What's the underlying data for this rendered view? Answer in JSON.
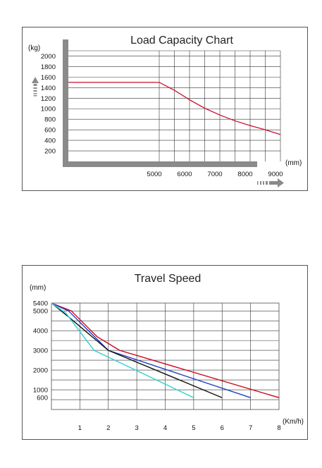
{
  "chart_data": [
    {
      "type": "line",
      "title": "Load Capacity Chart",
      "ylabel": "(kg)",
      "xlabel": "(mm)",
      "y_ticks": [
        "2000",
        "1800",
        "1600",
        "1400",
        "1200",
        "1000",
        "800",
        "600",
        "400",
        "200"
      ],
      "x_ticks": [
        "5000",
        "6000",
        "7000",
        "8000",
        "9000"
      ],
      "ylim": [
        0,
        2100
      ],
      "xlim": [
        2000,
        9000
      ],
      "grid": true,
      "series": [
        {
          "color": "#c8102e",
          "x": [
            2000,
            3000,
            4000,
            5000,
            5500,
            6000,
            6500,
            7000,
            7500,
            8000,
            8500,
            9000
          ],
          "y": [
            1500,
            1500,
            1500,
            1500,
            1350,
            1170,
            1010,
            880,
            770,
            680,
            600,
            510
          ]
        }
      ]
    },
    {
      "type": "line",
      "title": "Travel Speed",
      "ylabel": "(mm)",
      "xlabel": "(Km/h)",
      "y_ticks": [
        "5400",
        "5000",
        "4000",
        "3000",
        "2000",
        "1000",
        "600"
      ],
      "x_ticks": [
        "1",
        "2",
        "3",
        "4",
        "5",
        "6",
        "7",
        "8"
      ],
      "ylim": [
        0,
        5400
      ],
      "xlim": [
        0,
        8
      ],
      "grid": true,
      "series": [
        {
          "color": "#d0021b",
          "x": [
            0,
            0.7,
            1.6,
            2.4,
            8
          ],
          "y": [
            5400,
            5000,
            3700,
            3000,
            600
          ]
        },
        {
          "color": "#1f3fbf",
          "x": [
            0,
            0.6,
            2.0,
            7
          ],
          "y": [
            5400,
            5000,
            3000,
            600
          ]
        },
        {
          "color": "#111111",
          "x": [
            0,
            0.6,
            2.0,
            6
          ],
          "y": [
            5400,
            4700,
            3000,
            600
          ]
        },
        {
          "color": "#2fd0d0",
          "x": [
            0,
            0.5,
            1.5,
            5
          ],
          "y": [
            5400,
            4900,
            3000,
            600
          ]
        }
      ]
    }
  ]
}
